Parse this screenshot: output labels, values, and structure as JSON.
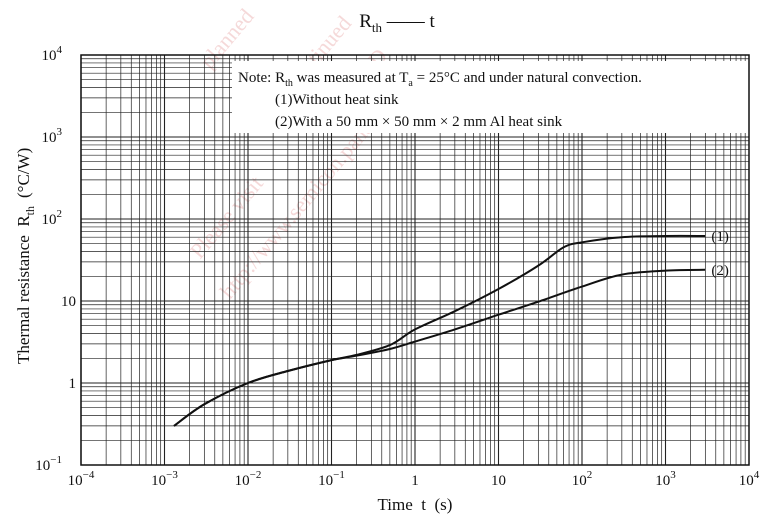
{
  "chart_data": {
    "type": "line",
    "title": "Rₜₕ — t",
    "title_main": "R",
    "title_sub": "th",
    "title_rest": "t",
    "xlabel": "Time  t  (s)",
    "ylabel": "Thermal resistance  R",
    "ylabel_sub": "th",
    "ylabel_unit": "(°C/W)",
    "xscale": "log",
    "yscale": "log",
    "xlim": [
      0.0001,
      10000
    ],
    "ylim": [
      0.1,
      10000
    ],
    "grid": true,
    "x_ticks": [
      {
        "base": "10",
        "exp": "−4"
      },
      {
        "base": "10",
        "exp": "−3"
      },
      {
        "base": "10",
        "exp": "−2"
      },
      {
        "base": "10",
        "exp": "−1"
      },
      {
        "base": "1",
        "exp": ""
      },
      {
        "base": "10",
        "exp": ""
      },
      {
        "base": "10",
        "exp": "2"
      },
      {
        "base": "10",
        "exp": "3"
      },
      {
        "base": "10",
        "exp": "4"
      }
    ],
    "y_ticks": [
      {
        "base": "10",
        "exp": "−1"
      },
      {
        "base": "1",
        "exp": ""
      },
      {
        "base": "10",
        "exp": ""
      },
      {
        "base": "10",
        "exp": "2"
      },
      {
        "base": "10",
        "exp": "3"
      },
      {
        "base": "10",
        "exp": "4"
      }
    ],
    "note": {
      "prefix": "Note: R",
      "sub": "th",
      "middle": " was measured at T",
      "sub2": "a",
      "suffix": " = 25°C and under natural convection.",
      "line1": "(1)Without heat sink",
      "line2": "(2)With a 50 mm × 50 mm × 2 mm Al heat sink"
    },
    "series": [
      {
        "name": "(1)",
        "x": [
          0.0013,
          0.003,
          0.01,
          0.03,
          0.1,
          0.2,
          0.5,
          1,
          3,
          10,
          30,
          60,
          100,
          300,
          1000,
          3000
        ],
        "y": [
          0.3,
          0.55,
          1.0,
          1.4,
          1.9,
          2.2,
          2.9,
          4.5,
          7.5,
          14,
          27,
          45,
          52,
          60,
          62,
          62
        ]
      },
      {
        "name": "(2)",
        "x": [
          0.0013,
          0.003,
          0.01,
          0.03,
          0.1,
          0.2,
          0.5,
          1,
          3,
          10,
          30,
          100,
          300,
          1000,
          3000
        ],
        "y": [
          0.3,
          0.55,
          1.0,
          1.4,
          1.9,
          2.15,
          2.6,
          3.2,
          4.5,
          6.8,
          9.8,
          15,
          21,
          23.5,
          24
        ]
      }
    ],
    "colors": {
      "line": "#111111",
      "grid": "#222222"
    }
  },
  "watermarks": [
    "Please visit",
    "discontinued",
    "http://www.semicon.panasonic",
    "planned",
    "ERD"
  ]
}
